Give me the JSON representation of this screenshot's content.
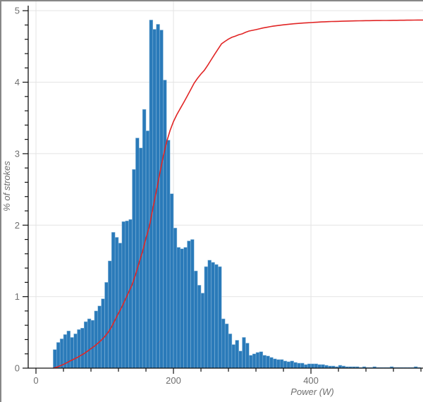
{
  "window": {
    "background": "#ffffff",
    "frame_color": "#878787"
  },
  "colors": {
    "bar_fill": "#2a7ab9",
    "bar_edge": "#8fbcdd",
    "cumulative_line": "#e12525",
    "axis_line": "#111111",
    "grid_line": "#e4e4e4",
    "tick_label": "#6f6f6f"
  },
  "chart_data": {
    "type": "bar",
    "subtype": "histogram-with-cumulative-line",
    "title": "",
    "xlabel": "Power (W)",
    "ylabel": "% of strokes",
    "xlim": [
      -11.3,
      563
    ],
    "ylim": [
      0,
      5.13
    ],
    "grid": true,
    "x_major_ticks": [
      0,
      200,
      400
    ],
    "x_tick_labels": [
      "0",
      "200",
      "400"
    ],
    "x_minor_step": 40,
    "x_tick_max": 560,
    "y_major_ticks": [
      0,
      1,
      2,
      3,
      4,
      5
    ],
    "y_tick_labels": [
      "0",
      "1",
      "2",
      "3",
      "4",
      "5"
    ],
    "y_minor_step": 0.2,
    "legend": "none",
    "series": [
      {
        "name": "% of strokes per 5 W bin",
        "type": "bar",
        "bin_start": 25,
        "bin_width": 5,
        "values": [
          0.26,
          0.36,
          0.41,
          0.47,
          0.52,
          0.43,
          0.48,
          0.54,
          0.56,
          0.65,
          0.69,
          0.67,
          0.8,
          0.87,
          0.97,
          1.2,
          1.5,
          1.9,
          1.83,
          1.75,
          2.05,
          2.06,
          2.08,
          2.78,
          3.22,
          3.08,
          3.62,
          3.32,
          4.87,
          4.74,
          4.81,
          4.73,
          4.03,
          3.19,
          2.44,
          1.96,
          1.69,
          1.67,
          1.69,
          1.78,
          1.8,
          1.36,
          1.16,
          1.05,
          1.42,
          1.51,
          1.48,
          1.45,
          1.42,
          0.69,
          0.62,
          0.48,
          0.33,
          0.39,
          0.24,
          0.43,
          0.35,
          0.18,
          0.2,
          0.22,
          0.23,
          0.18,
          0.17,
          0.15,
          0.13,
          0.12,
          0.12,
          0.1,
          0.09,
          0.1,
          0.08,
          0.07,
          0.07,
          0.05,
          0.06,
          0.06,
          0.06,
          0.05,
          0.05,
          0.04,
          0.03,
          0.03,
          0.02,
          0.04,
          0.03,
          0.02,
          0.02,
          0.02,
          0.02,
          0.01,
          0.02,
          0.01,
          0.01,
          0.02,
          0.01,
          0.01,
          0.01,
          0.01,
          0.02,
          0.01,
          0.01,
          0.01,
          0.01,
          0.01,
          0.01,
          0.02,
          0.01
        ]
      },
      {
        "name": "cumulative distribution",
        "type": "line",
        "start_x": 25,
        "plateau_value": 4.87,
        "definition": "normalized cumulative sum of histogram bins scaled to plateau_value"
      }
    ]
  }
}
